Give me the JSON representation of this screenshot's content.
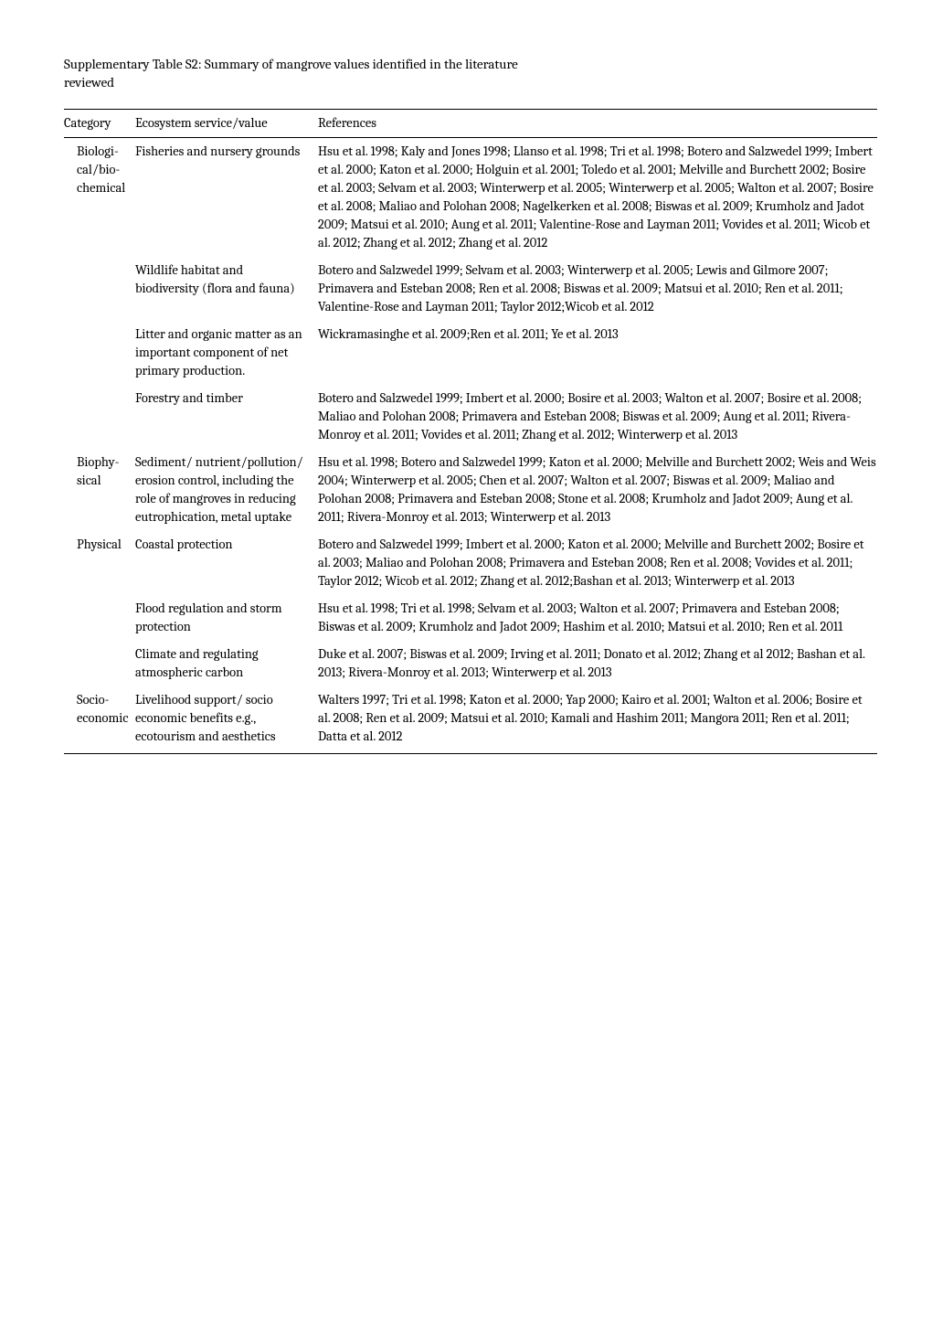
{
  "title": "Supplementary Table S2: Summary of mangrove values identified in the literature reviewed",
  "columns": [
    "Category",
    "Ecosystem service/value",
    "References"
  ],
  "rows": [
    {
      "category": "Biologi­cal/bio­chemic­al",
      "service": "Fisheries and nursery grounds",
      "references": "Hsu et al. 1998; Kaly and Jones 1998;  Llanso et al. 1998; Tri et al. 1998; Botero and Salzwedel 1999; Imbert et al. 2000; Katon et al. 2000; Holguin et al. 2001; Toledo et al. 2001; Melville and Burchett 2002; Bosire et al. 2003; Selvam et al. 2003; Winterwerp et al. 2005; Winterwerp et al. 2005; Walton et al. 2007; Bosire et al. 2008; Maliao and Polohan 2008; Nagelkerken et al. 2008; Biswas et al. 2009; Krumholz and Jadot 2009; Matsui et al. 2010; Aung et al. 2011; Valentine-Rose and Layman 2011; Vovides et al. 2011; Wicob et al. 2012; Zhang et al. 2012; Zhang et al. 2012"
    },
    {
      "category": "",
      "service": "Wildlife habitat and biodiversity (flora and fauna)",
      "references": " Botero and Salzwedel 1999; Selvam et al. 2003; Winterwerp et al. 2005; Lewis and Gilmore 2007; Primavera and Esteban 2008; Ren et al. 2008; Biswas et al. 2009; Matsui et al. 2010; Ren et al. 2011; Valentine-Rose and Layman 2011; Taylor 2012;Wicob et al. 2012"
    },
    {
      "category": "",
      "service": "Litter and organic matter as an important component of net primary production.",
      "references": "Wickramasinghe et al. 2009;Ren et al. 2011; Ye et al. 2013"
    },
    {
      "category": "",
      "service": "Forestry and timber",
      "references": "Botero and Salzwedel 1999; Imbert et al. 2000; Bosire et al. 2003; Walton et al. 2007; Bosire et al. 2008; Maliao and Polohan 2008; Primavera and Esteban 2008; Biswas et al. 2009; Aung et al. 2011; Rivera-Monroy et al. 2011; Vovides et al. 2011; Zhang et al. 2012; Winterwerp et al. 2013"
    },
    {
      "category": "Biophy­sical",
      "service": "Sediment/ nutrient/pollution/ erosion control, including the role of mangroves in reducing eutrophication, metal uptake",
      "references": "Hsu et al. 1998; Botero and Salzwedel 1999; Katon et al. 2000; Melville and Burchett 2002; Weis and Weis 2004; Winterwerp et al. 2005; Chen et al. 2007; Walton et al. 2007; Biswas et al. 2009; Maliao and Polohan 2008; Primavera and Esteban 2008; Stone et al. 2008; Krumholz and Jadot 2009; Aung et al. 2011; Rivera-Monroy et al. 2013; Winterwerp et al. 2013"
    },
    {
      "category": "Physica­l",
      "service": "Coastal protection",
      "references": "Botero and Salzwedel 1999; Imbert et al. 2000; Katon et al. 2000; Melville and Burchett 2002; Bosire et al. 2003; Maliao and Polohan 2008; Primavera and Esteban 2008; Ren et al. 2008; Vovides et al. 2011; Taylor 2012; Wicob et al. 2012; Zhang et al. 2012;Bashan et al. 2013; Winterwerp et al. 2013"
    },
    {
      "category": "",
      "service": "Flood regulation and storm protection",
      "references": "Hsu et al. 1998; Tri et al. 1998; Selvam et al. 2003; Walton et al. 2007; Primavera and Esteban 2008; Biswas et al. 2009; Krumholz and Jadot 2009; Hashim et al. 2010; Matsui et al. 2010; Ren et al. 2011"
    },
    {
      "category": "",
      "service": "Climate and regulating atmospheric carbon",
      "references": "Duke et al. 2007; Biswas et al. 2009; Irving et al. 2011; Donato et al. 2012; Zhang et al 2012; Bashan et al. 2013; Rivera-Monroy et al. 2013; Winterwerp et al. 2013"
    },
    {
      "category": "Socio-econo­mic",
      "service": "Livelihood support/ socio economic benefits e.g., ecotourism and aesthetics",
      "references": "Walters 1997; Tri et al. 1998; Katon et al. 2000; Yap 2000; Kairo et al. 2001; Walton et al. 2006; Bosire et al. 2008; Ren et al. 2009; Matsui et al. 2010; Kamali and Hashim 2011; Mangora 2011; Ren et al. 2011; Datta et al. 2012"
    }
  ]
}
